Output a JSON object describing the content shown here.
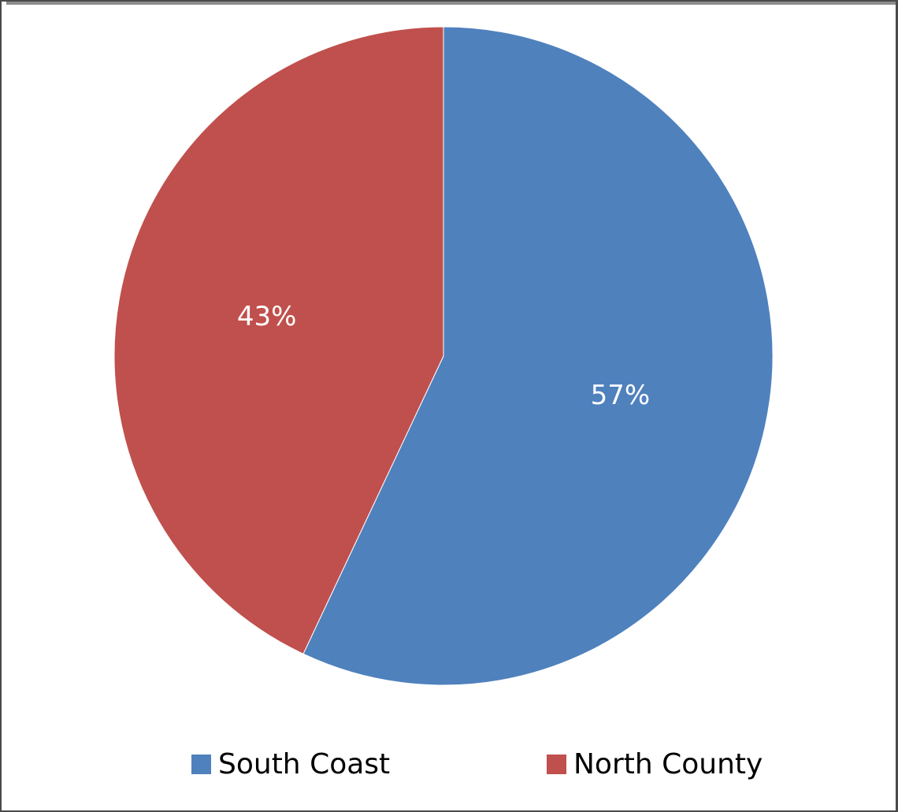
{
  "chart_data": {
    "type": "pie",
    "categories": [
      "South Coast",
      "North County"
    ],
    "values": [
      57,
      43
    ],
    "data_labels": [
      "57%",
      "43%"
    ],
    "colors": [
      "#4f81bd",
      "#c0504d"
    ],
    "start_angle": "12 o'clock",
    "direction": "clockwise",
    "legend_position": "bottom"
  },
  "legend": {
    "items": [
      {
        "label": "South Coast",
        "color": "#4f81bd"
      },
      {
        "label": "North County",
        "color": "#c0504d"
      }
    ]
  }
}
